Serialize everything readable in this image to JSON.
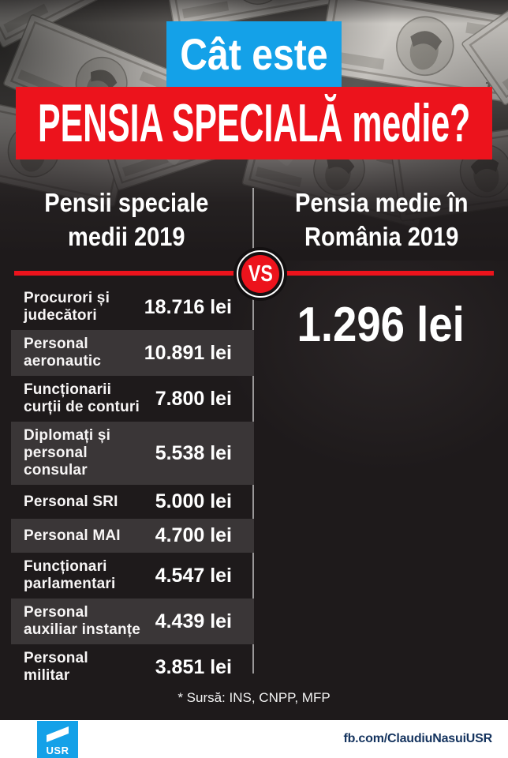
{
  "headline": {
    "top": "Cât este",
    "main": "PENSIA SPECIALĂ medie?"
  },
  "comparison": {
    "left_header": "Pensii speciale\nmedii 2019",
    "right_header": "Pensia medie în\nRomânia 2019",
    "vs_label": "VS",
    "right_value": "1.296 lei"
  },
  "table": {
    "rows": [
      {
        "name": "Procurori și\njudecători",
        "value": "18.716 lei"
      },
      {
        "name": "Personal\naeronautic",
        "value": "10.891 lei"
      },
      {
        "name": "Funcționarii\ncurții de conturi",
        "value": "7.800 lei"
      },
      {
        "name": "Diplomați și\npersonal\nconsular",
        "value": "5.538 lei"
      },
      {
        "name": "Personal SRI",
        "value": "5.000 lei"
      },
      {
        "name": "Personal MAI",
        "value": "4.700 lei"
      },
      {
        "name": "Funcționari\nparlamentari",
        "value": "4.547 lei"
      },
      {
        "name": "Personal\nauxiliar instanțe",
        "value": "4.439 lei"
      },
      {
        "name": "Personal\nmilitar",
        "value": "3.851 lei"
      }
    ]
  },
  "source_note": "* Sursă: INS, CNPP, MFP",
  "footer": {
    "logo_text": "USR",
    "handle": "fb.com/ClaudiuNasuiUSR"
  },
  "colors": {
    "accent_red": "#ec131c",
    "accent_blue": "#14a1e8",
    "footer_navy": "#14335e",
    "row_highlight": "#3a3637",
    "background": "#1e1a1b"
  },
  "chart_data": {
    "type": "table",
    "title": "Cât este PENSIA SPECIALĂ medie?",
    "left_title": "Pensii speciale medii 2019",
    "right_title": "Pensia medie în România 2019",
    "categories": [
      "Procurori și judecători",
      "Personal aeronautic",
      "Funcționarii curții de conturi",
      "Diplomați și personal consular",
      "Personal SRI",
      "Personal MAI",
      "Funcționari parlamentari",
      "Personal auxiliar instanțe",
      "Personal militar"
    ],
    "values": [
      18716,
      10891,
      7800,
      5538,
      5000,
      4700,
      4547,
      4439,
      3851
    ],
    "value_labels": [
      "18.716 lei",
      "10.891 lei",
      "7.800 lei",
      "5.538 lei",
      "5.000 lei",
      "4.700 lei",
      "4.547 lei",
      "4.439 lei",
      "3.851 lei"
    ],
    "unit": "lei",
    "comparison_label": "Pensia medie în România 2019",
    "comparison_value": 1296,
    "comparison_value_label": "1.296 lei",
    "source": "INS, CNPP, MFP"
  }
}
